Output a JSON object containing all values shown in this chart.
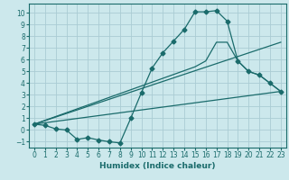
{
  "xlabel": "Humidex (Indice chaleur)",
  "background_color": "#cce8ec",
  "grid_color": "#aaccd4",
  "line_color": "#1a6b6b",
  "xlim": [
    -0.5,
    23.5
  ],
  "ylim": [
    -1.5,
    10.8
  ],
  "xticks": [
    0,
    1,
    2,
    3,
    4,
    5,
    6,
    7,
    8,
    9,
    10,
    11,
    12,
    13,
    14,
    15,
    16,
    17,
    18,
    19,
    20,
    21,
    22,
    23
  ],
  "yticks": [
    -1,
    0,
    1,
    2,
    3,
    4,
    5,
    6,
    7,
    8,
    9,
    10
  ],
  "series1_x": [
    0,
    1,
    2,
    3,
    4,
    5,
    6,
    7,
    8,
    9,
    10,
    11,
    12,
    13,
    14,
    15,
    16,
    17,
    18,
    19,
    20,
    21,
    22,
    23
  ],
  "series1_y": [
    0.5,
    0.4,
    0.1,
    0.0,
    -0.8,
    -0.65,
    -0.85,
    -1.0,
    -1.1,
    1.0,
    3.2,
    5.3,
    6.6,
    7.6,
    8.6,
    10.1,
    10.1,
    10.2,
    9.3,
    5.9,
    5.0,
    4.7,
    4.0,
    3.3
  ],
  "series2_x": [
    0,
    23
  ],
  "series2_y": [
    0.5,
    3.3
  ],
  "series3_x": [
    0,
    15,
    16,
    17,
    18,
    19,
    20,
    21,
    22,
    23
  ],
  "series3_y": [
    0.5,
    5.4,
    5.9,
    7.5,
    7.5,
    5.9,
    5.0,
    4.7,
    4.0,
    3.3
  ],
  "series4_x": [
    0,
    23
  ],
  "series4_y": [
    0.5,
    7.5
  ]
}
